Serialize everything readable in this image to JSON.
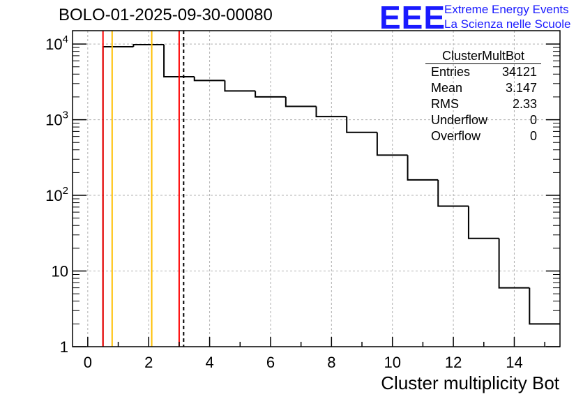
{
  "header": {
    "title": "BOLO-01-2025-09-30-00080",
    "logo": "EEE",
    "logo_line1": "Extreme Energy Events",
    "logo_line2": "La Scienza nelle Scuole"
  },
  "stats": {
    "name": "ClusterMultBot",
    "rows": [
      {
        "label": "Entries",
        "value": "34121"
      },
      {
        "label": "Mean",
        "value": "3.147"
      },
      {
        "label": "RMS",
        "value": "2.33"
      },
      {
        "label": "Underflow",
        "value": "0"
      },
      {
        "label": "Overflow",
        "value": "0"
      }
    ]
  },
  "chart_data": {
    "type": "bar",
    "style": "step-histogram",
    "title": "BOLO-01-2025-09-30-00080",
    "xlabel": "Cluster multiplicity Bot",
    "ylabel": "",
    "xlim": [
      -0.5,
      15.5
    ],
    "ylim": [
      1,
      15000
    ],
    "yscale": "log",
    "grid": true,
    "x_ticks": [
      0,
      2,
      4,
      6,
      8,
      10,
      12,
      14
    ],
    "x_tick_labels": [
      "0",
      "2",
      "4",
      "6",
      "8",
      "10",
      "12",
      "14"
    ],
    "y_ticks": [
      1,
      10,
      100,
      1000,
      10000
    ],
    "y_tick_labels": [
      "1",
      "10",
      "10^2",
      "10^3",
      "10^4"
    ],
    "bin_width": 1,
    "bin_centers": [
      0,
      1,
      2,
      3,
      4,
      5,
      6,
      7,
      8,
      9,
      10,
      11,
      12,
      13,
      14,
      15
    ],
    "values": [
      0,
      9200,
      9800,
      3700,
      3300,
      2400,
      2000,
      1500,
      1100,
      680,
      340,
      160,
      72,
      27,
      6,
      2
    ],
    "line_color": "#000000",
    "markers": [
      {
        "x": 0.5,
        "color": "#ff0000",
        "style": "solid"
      },
      {
        "x": 0.8,
        "color": "#ffbf00",
        "style": "solid"
      },
      {
        "x": 2.1,
        "color": "#ffbf00",
        "style": "solid"
      },
      {
        "x": 3.0,
        "color": "#ff0000",
        "style": "solid"
      },
      {
        "x": 3.147,
        "color": "#000000",
        "style": "dashed"
      }
    ]
  }
}
